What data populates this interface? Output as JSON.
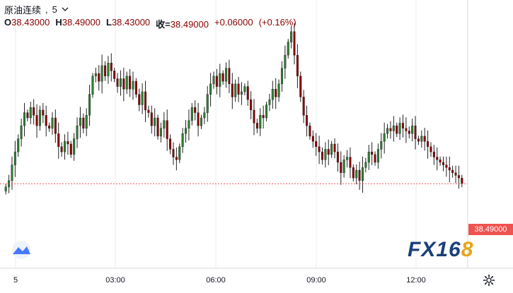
{
  "legend": {
    "symbol": "原油连续",
    "interval": "5",
    "open_label": "O",
    "open": "38.43000",
    "high_label": "H",
    "high": "38.49000",
    "low_label": "L",
    "low": "38.43000",
    "close_label": "收=",
    "close": "38.49000",
    "change": "+0.06000",
    "change_pct": "(+0.16%)"
  },
  "last_price_label": "38.49000",
  "watermark": {
    "fx": "FX",
    "num": "16",
    "eight": "8"
  },
  "colors": {
    "up": "#2e7d32",
    "down": "#8b0000",
    "price_line": "#ef5350",
    "grid": "#eeeeee"
  },
  "icons": [
    "tradingview-logo-icon",
    "settings-gear-icon",
    "chevron-down-icon"
  ],
  "chart_data": {
    "type": "candlestick",
    "x_tick_labels": [
      "5",
      "03:00",
      "06:00",
      "09:00",
      "12:00"
    ],
    "price_line": 38.49,
    "y_range": [
      36.9,
      41.6
    ],
    "candles_close": [
      38.43,
      38.55,
      38.85,
      39.1,
      39.35,
      39.6,
      39.85,
      39.75,
      39.95,
      39.8,
      39.6,
      39.9,
      39.8,
      39.6,
      39.55,
      39.75,
      39.45,
      39.2,
      39.1,
      39.3,
      39.25,
      39.05,
      39.35,
      39.6,
      39.75,
      39.55,
      39.8,
      40.2,
      40.55,
      40.6,
      40.45,
      40.75,
      40.55,
      40.8,
      40.65,
      40.5,
      40.35,
      40.5,
      40.3,
      40.55,
      40.3,
      40.45,
      40.2,
      40.0,
      40.25,
      39.9,
      39.85,
      39.6,
      39.75,
      39.4,
      39.55,
      39.7,
      39.35,
      39.15,
      39.0,
      38.95,
      39.2,
      39.45,
      39.55,
      39.7,
      39.95,
      39.85,
      39.6,
      39.75,
      39.85,
      40.2,
      40.4,
      40.55,
      40.35,
      40.6,
      40.45,
      40.7,
      40.4,
      40.15,
      40.4,
      40.2,
      40.25,
      40.35,
      40.1,
      39.9,
      39.65,
      39.55,
      39.8,
      39.75,
      40.0,
      40.1,
      40.3,
      40.15,
      40.4,
      40.7,
      40.95,
      41.2,
      41.4,
      40.95,
      40.55,
      40.15,
      39.8,
      39.6,
      39.4,
      39.3,
      39.2,
      39.1,
      38.95,
      39.15,
      39.05,
      39.25,
      39.1,
      38.9,
      38.7,
      38.95,
      39.0,
      38.8,
      38.6,
      38.75,
      38.55,
      38.8,
      38.9,
      39.1,
      39.05,
      38.9,
      39.15,
      39.3,
      39.45,
      39.55,
      39.5,
      39.6,
      39.45,
      39.65,
      39.55,
      39.5,
      39.45,
      39.6,
      39.35,
      39.3,
      39.4,
      39.3,
      39.2,
      39.1,
      39.0,
      38.95,
      38.9,
      38.85,
      38.8,
      38.75,
      38.7,
      38.65,
      38.6,
      38.49
    ]
  }
}
